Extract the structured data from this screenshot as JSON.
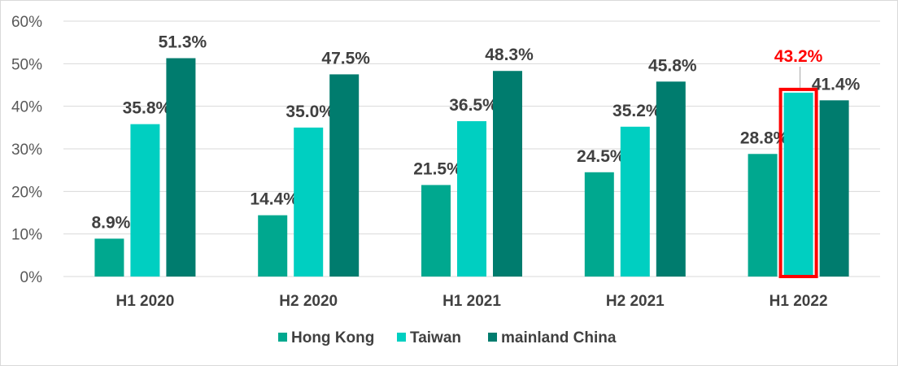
{
  "chart_data": {
    "type": "bar",
    "categories": [
      "H1 2020",
      "H2 2020",
      "H1 2021",
      "H2 2021",
      "H1 2022"
    ],
    "series": [
      {
        "name": "Hong Kong",
        "color": "#00a88f",
        "values": [
          8.9,
          14.4,
          21.5,
          24.5,
          28.8
        ],
        "labels": [
          "8.9%",
          "14.4%",
          "21.5%",
          "24.5%",
          "28.8%"
        ]
      },
      {
        "name": "Taiwan",
        "color": "#00cfc1",
        "values": [
          35.8,
          35.0,
          36.5,
          35.2,
          43.2
        ],
        "labels": [
          "35.8%",
          "35.0%",
          "36.5%",
          "35.2%",
          "43.2%"
        ]
      },
      {
        "name": "mainland China",
        "color": "#007c6e",
        "values": [
          51.3,
          47.5,
          48.3,
          45.8,
          41.4
        ],
        "labels": [
          "51.3%",
          "47.5%",
          "48.3%",
          "45.8%",
          "41.4%"
        ]
      }
    ],
    "highlight": {
      "series": 1,
      "category": 4,
      "color": "#ff0000"
    },
    "ylim": [
      0,
      60
    ],
    "yticks": [
      0,
      10,
      20,
      30,
      40,
      50,
      60
    ],
    "ytick_labels": [
      "0%",
      "10%",
      "20%",
      "30%",
      "40%",
      "50%",
      "60%"
    ],
    "grid": true,
    "legend": "bottom",
    "title": "",
    "xlabel": "",
    "ylabel": ""
  }
}
